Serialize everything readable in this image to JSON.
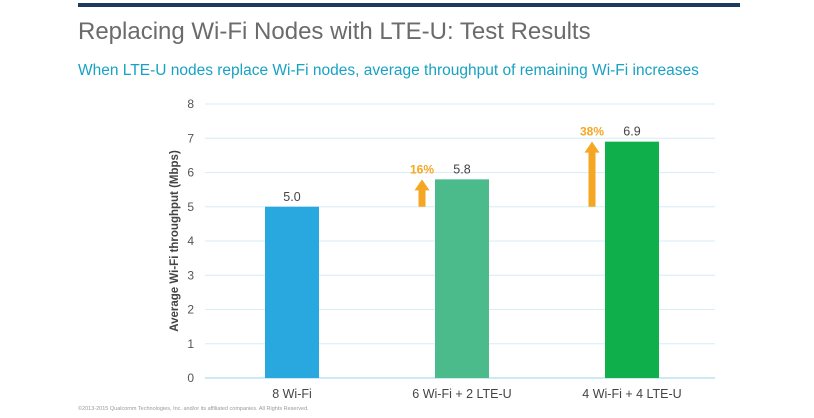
{
  "header": {
    "title": "Replacing Wi-Fi Nodes with LTE-U: Test Results",
    "subtitle": "When LTE-U nodes replace Wi-Fi nodes, average throughput of remaining Wi-Fi increases",
    "rule_color": "#1f3a5f"
  },
  "footer": {
    "copyright": "©2013-2015 Qualcomm Technologies, Inc. and/or its affiliated companies. All Rights Reserved."
  },
  "chart_data": {
    "type": "bar",
    "categories": [
      "8 Wi-Fi",
      "6 Wi-Fi + 2 LTE-U",
      "4 Wi-Fi + 4 LTE-U"
    ],
    "values": [
      5.0,
      5.8,
      6.9
    ],
    "value_labels": [
      "5.0",
      "5.8",
      "6.9"
    ],
    "bar_colors": [
      "#29a8e0",
      "#4cbb8b",
      "#0fb04b"
    ],
    "ylabel": "Average Wi-Fi throughput (Mbps)",
    "ylim": [
      0,
      8
    ],
    "yticks": [
      "0",
      "1",
      "2",
      "3",
      "4",
      "5",
      "6",
      "7",
      "8"
    ],
    "grid": true,
    "grid_color": "#d6eef6",
    "annotations": [
      {
        "category": "6 Wi-Fi + 2 LTE-U",
        "text": "16%",
        "from": 5.0,
        "to": 5.8,
        "color": "#f5a623"
      },
      {
        "category": "4 Wi-Fi + 4 LTE-U",
        "text": "38%",
        "from": 5.0,
        "to": 6.9,
        "color": "#f5a623"
      }
    ]
  }
}
